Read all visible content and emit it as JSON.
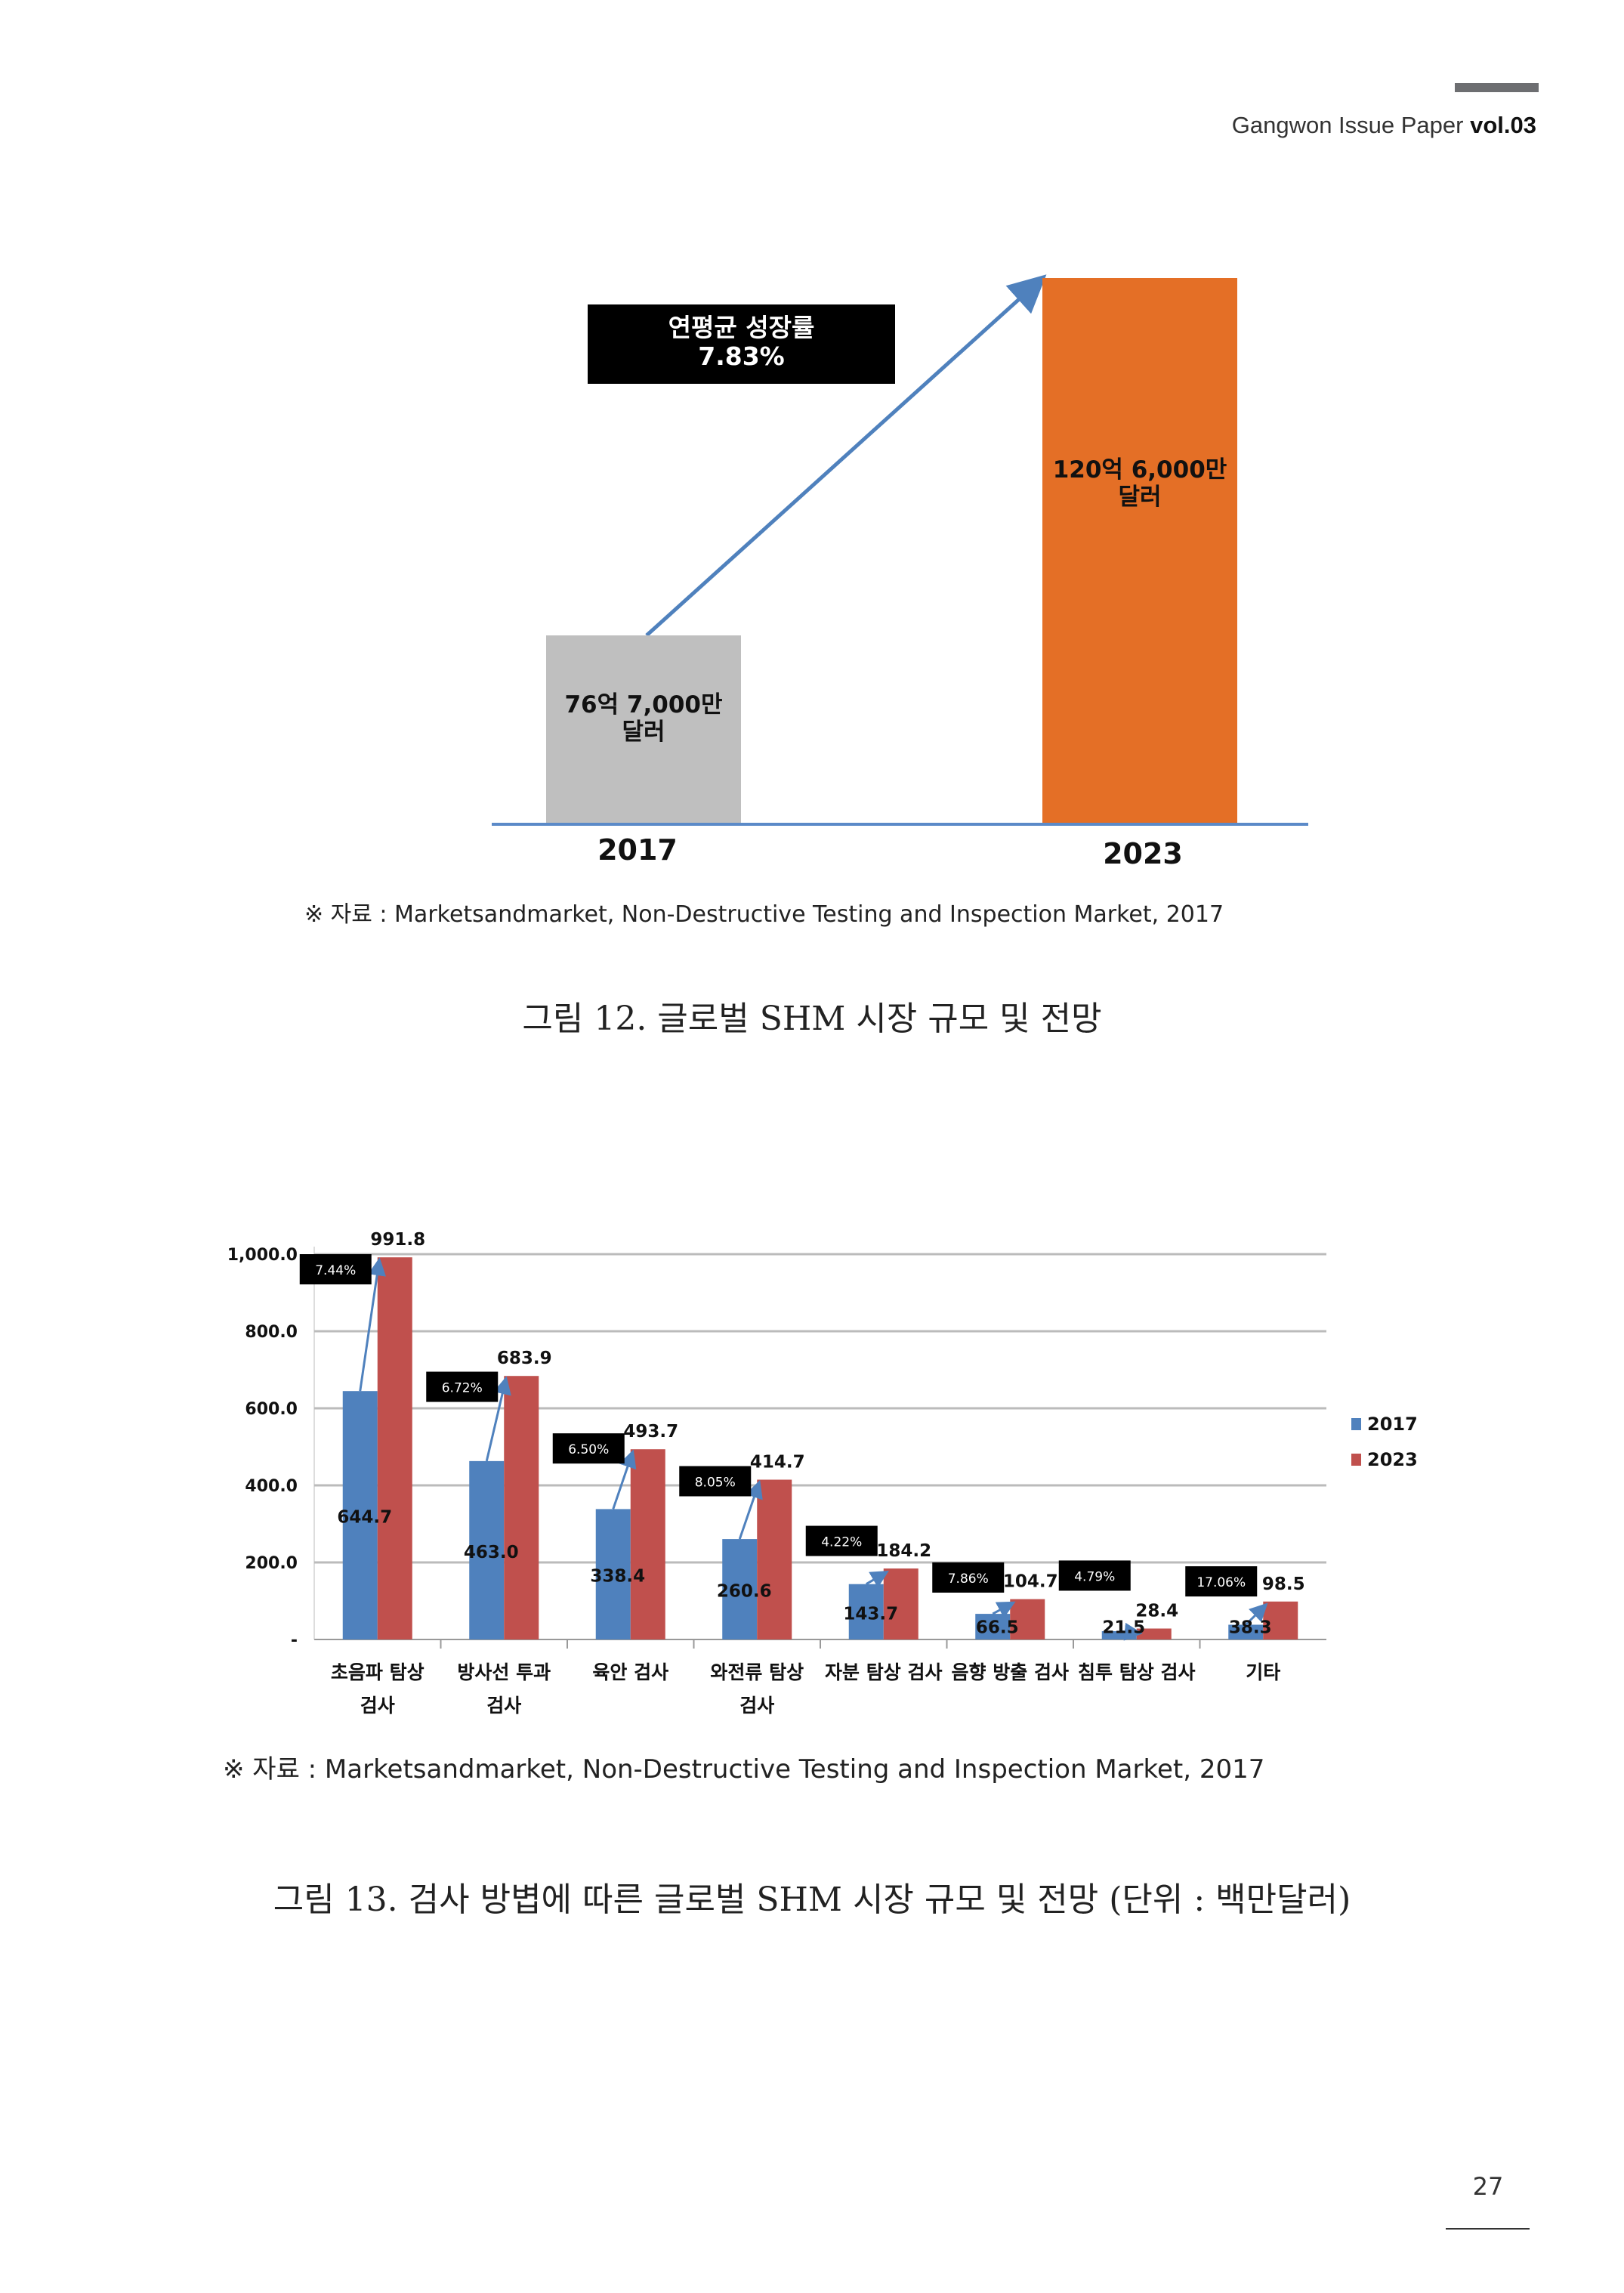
{
  "header": {
    "title": "Gangwon Issue Paper",
    "volume": "vol.03"
  },
  "figure12": {
    "growth_box": {
      "line1": "연평균 성장률",
      "line2": "7.83%"
    },
    "source": "※ 자료 : Marketsandmarket, Non-Destructive Testing and Inspection Market, 2017",
    "caption": "그림 12. 글로벌 SHM 시장 규모 및 전망"
  },
  "figure13": {
    "source": "※ 자료 : Marketsandmarket, Non-Destructive Testing and Inspection Market, 2017",
    "caption": "그림 13. 검사 방볍에 따른 글로벌 SHM 시장 규모 및 전망 (단위 : 백만달러)"
  },
  "page_number": "27",
  "colors": {
    "gray": "#bfbfbf",
    "orange": "#e46f26",
    "blue": "#4f81bd",
    "red": "#c0504d",
    "arrow": "#4f81bd"
  },
  "chart_data": [
    {
      "type": "bar",
      "title": "글로벌 SHM 시장 규모 및 전망",
      "categories": [
        "2017",
        "2023"
      ],
      "values": [
        7670,
        12060
      ],
      "unit": "백만달러",
      "data_labels": [
        [
          "76억 7,000만",
          "달러"
        ],
        [
          "120억 6,000만",
          "달러"
        ]
      ],
      "annotation": "연평균 성장률 7.83%"
    },
    {
      "type": "bar",
      "title": "검사 방볍에 따른 글로벌 SHM 시장 규모 및 전망",
      "categories": [
        [
          "초음파 탐상",
          "검사"
        ],
        [
          "방사선 투과",
          "검사"
        ],
        [
          "육안 검사"
        ],
        [
          "와전류 탐상",
          "검사"
        ],
        [
          "자분 탐상 검사"
        ],
        [
          "음향 방출 검사"
        ],
        [
          "침투 탐상 검사"
        ],
        [
          "기타"
        ]
      ],
      "series": [
        {
          "name": "2017",
          "values": [
            644.7,
            463.0,
            338.4,
            260.6,
            143.7,
            66.5,
            21.5,
            38.3
          ],
          "labels": [
            "644.7",
            "463.0",
            "338.4",
            "260.6",
            "143.7",
            "66.5",
            "21.5",
            "38.3"
          ]
        },
        {
          "name": "2023",
          "values": [
            991.8,
            683.9,
            493.7,
            414.7,
            184.2,
            104.7,
            28.4,
            98.5
          ],
          "labels": [
            "991.8",
            "683.9",
            "493.7",
            "414.7",
            "184.2",
            "104.7",
            "28.4",
            "98.5"
          ]
        }
      ],
      "growth_rates": [
        "7.44%",
        "6.72%",
        "6.50%",
        "8.05%",
        "4.22%",
        "7.86%",
        "4.79%",
        "17.06%"
      ],
      "ylim": [
        0,
        1000
      ],
      "yticks": [
        "-",
        "200.0",
        "400.0",
        "600.0",
        "800.0",
        "1,000.0"
      ],
      "yticks_values": [
        0,
        200,
        400,
        600,
        800,
        1000
      ],
      "grid": true,
      "legend": "right",
      "xlabel": "",
      "ylabel": ""
    }
  ]
}
